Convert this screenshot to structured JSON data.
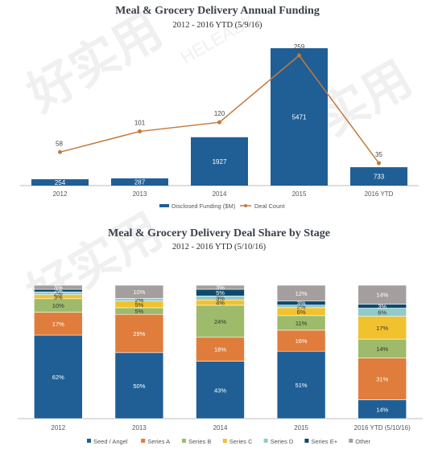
{
  "chart_data": [
    {
      "type": "bar+line",
      "title": "Meal & Grocery Delivery Annual Funding",
      "subtitle": "2012 - 2016 YTD (5/9/16)",
      "categories": [
        "2012",
        "2013",
        "2014",
        "2015",
        "2016 YTD"
      ],
      "series": [
        {
          "name": "Disclosed Funding ($M)",
          "kind": "bar",
          "color": "#1f5f96",
          "values": [
            254,
            287,
            1927,
            5471,
            733
          ]
        },
        {
          "name": "Deal Count",
          "kind": "line",
          "color": "#c27a3c",
          "values": [
            58,
            101,
            120,
            259,
            35
          ]
        }
      ],
      "legend": "bottom",
      "grid": false
    },
    {
      "type": "stacked-bar",
      "title": "Meal & Grocery Delivery Deal Share by Stage",
      "subtitle": "2012 - 2016 YTD (5/10/16)",
      "categories": [
        "2012",
        "2013",
        "2014",
        "2015",
        "2016 YTD (5/10/16)"
      ],
      "series": [
        {
          "name": "Seed / Angel",
          "color": "#1f5f96",
          "values": [
            62,
            50,
            43,
            51,
            14
          ]
        },
        {
          "name": "Series A",
          "color": "#e07d3c",
          "values": [
            17,
            29,
            18,
            16,
            31
          ]
        },
        {
          "name": "Series B",
          "color": "#9dbb6a",
          "values": [
            10,
            5,
            24,
            11,
            14
          ]
        },
        {
          "name": "Series C",
          "color": "#f2c12e",
          "values": [
            3,
            5,
            4,
            6,
            17
          ]
        },
        {
          "name": "Series D",
          "color": "#8fcbc8",
          "values": [
            2,
            2,
            3,
            2,
            6
          ]
        },
        {
          "name": "Series E+",
          "color": "#0f4a6e",
          "values": [
            2,
            0,
            5,
            3,
            3
          ]
        },
        {
          "name": "Other",
          "color": "#a49f9e",
          "values": [
            3,
            10,
            3,
            12,
            14
          ]
        }
      ],
      "legend": "bottom",
      "grid": false
    }
  ],
  "watermark": {
    "text": "好实用",
    "subtext": "HELEASY"
  }
}
